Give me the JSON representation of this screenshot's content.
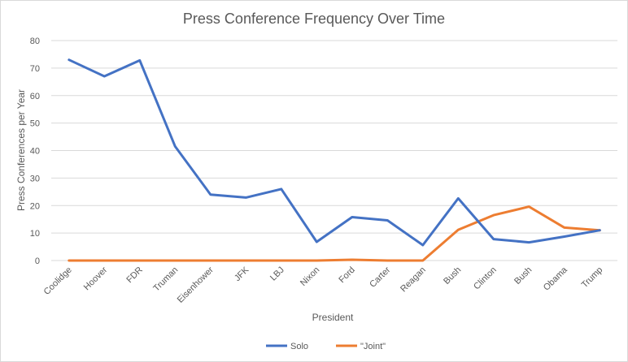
{
  "chart_data": {
    "type": "line",
    "title": "Press Conference Frequency Over Time",
    "xlabel": "President",
    "ylabel": "Press Conferences per Year",
    "ylim": [
      0,
      80
    ],
    "yticks": [
      0,
      10,
      20,
      30,
      40,
      50,
      60,
      70,
      80
    ],
    "grid": true,
    "legend_position": "bottom",
    "categories": [
      "Coolidge",
      "Hoover",
      "FDR",
      "Truman",
      "Eisenhower",
      "JFK",
      "LBJ",
      "Nixon",
      "Ford",
      "Carter",
      "Reagan",
      "Bush",
      "Clinton",
      "Bush",
      "Obama",
      "Trump"
    ],
    "series": [
      {
        "name": "Solo",
        "color": "#4472c4",
        "values": [
          73,
          67,
          72.8,
          41.5,
          24,
          22.9,
          26,
          6.8,
          15.8,
          14.6,
          5.6,
          22.6,
          7.8,
          6.6,
          8.7,
          11
        ]
      },
      {
        "name": "\"Joint\"",
        "color": "#ed7d31",
        "values": [
          0,
          0,
          0,
          0,
          0,
          0,
          0,
          0,
          0.3,
          0,
          0,
          11.2,
          16.5,
          19.6,
          12,
          11
        ]
      }
    ]
  }
}
